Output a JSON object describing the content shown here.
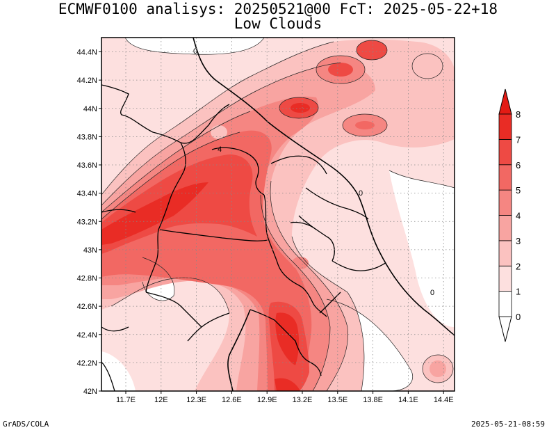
{
  "title": {
    "line1": "ECMWF0100 analisys: 20250521@00 FcT: 2025-05-22+18",
    "line2": "Low Clouds"
  },
  "footer": {
    "left": "GrADS/COLA",
    "right": "2025-05-21-08:59"
  },
  "map": {
    "lon_ticks": [
      "11.7E",
      "12E",
      "12.3E",
      "12.6E",
      "12.9E",
      "13.2E",
      "13.5E",
      "13.8E",
      "14.1E",
      "14.4E"
    ],
    "lat_ticks": [
      "44.4N",
      "44.2N",
      "44N",
      "43.8N",
      "43.6N",
      "43.4N",
      "43.2N",
      "43N",
      "42.8N",
      "42.6N",
      "42.4N",
      "42.2N",
      "42N"
    ],
    "contour_labels": [
      "0",
      "0",
      "0",
      "4"
    ]
  },
  "colorbar": {
    "labels": [
      "0",
      "1",
      "2",
      "3",
      "4",
      "5",
      "6",
      "7",
      "8"
    ],
    "colors": [
      "#ffffff",
      "#fde0df",
      "#fbc2c0",
      "#f8a4a1",
      "#f58682",
      "#f26863",
      "#ee4a44",
      "#e92c25"
    ],
    "arrow_colors": {
      "low": "#ffffff",
      "high": "#e31b14"
    }
  }
}
